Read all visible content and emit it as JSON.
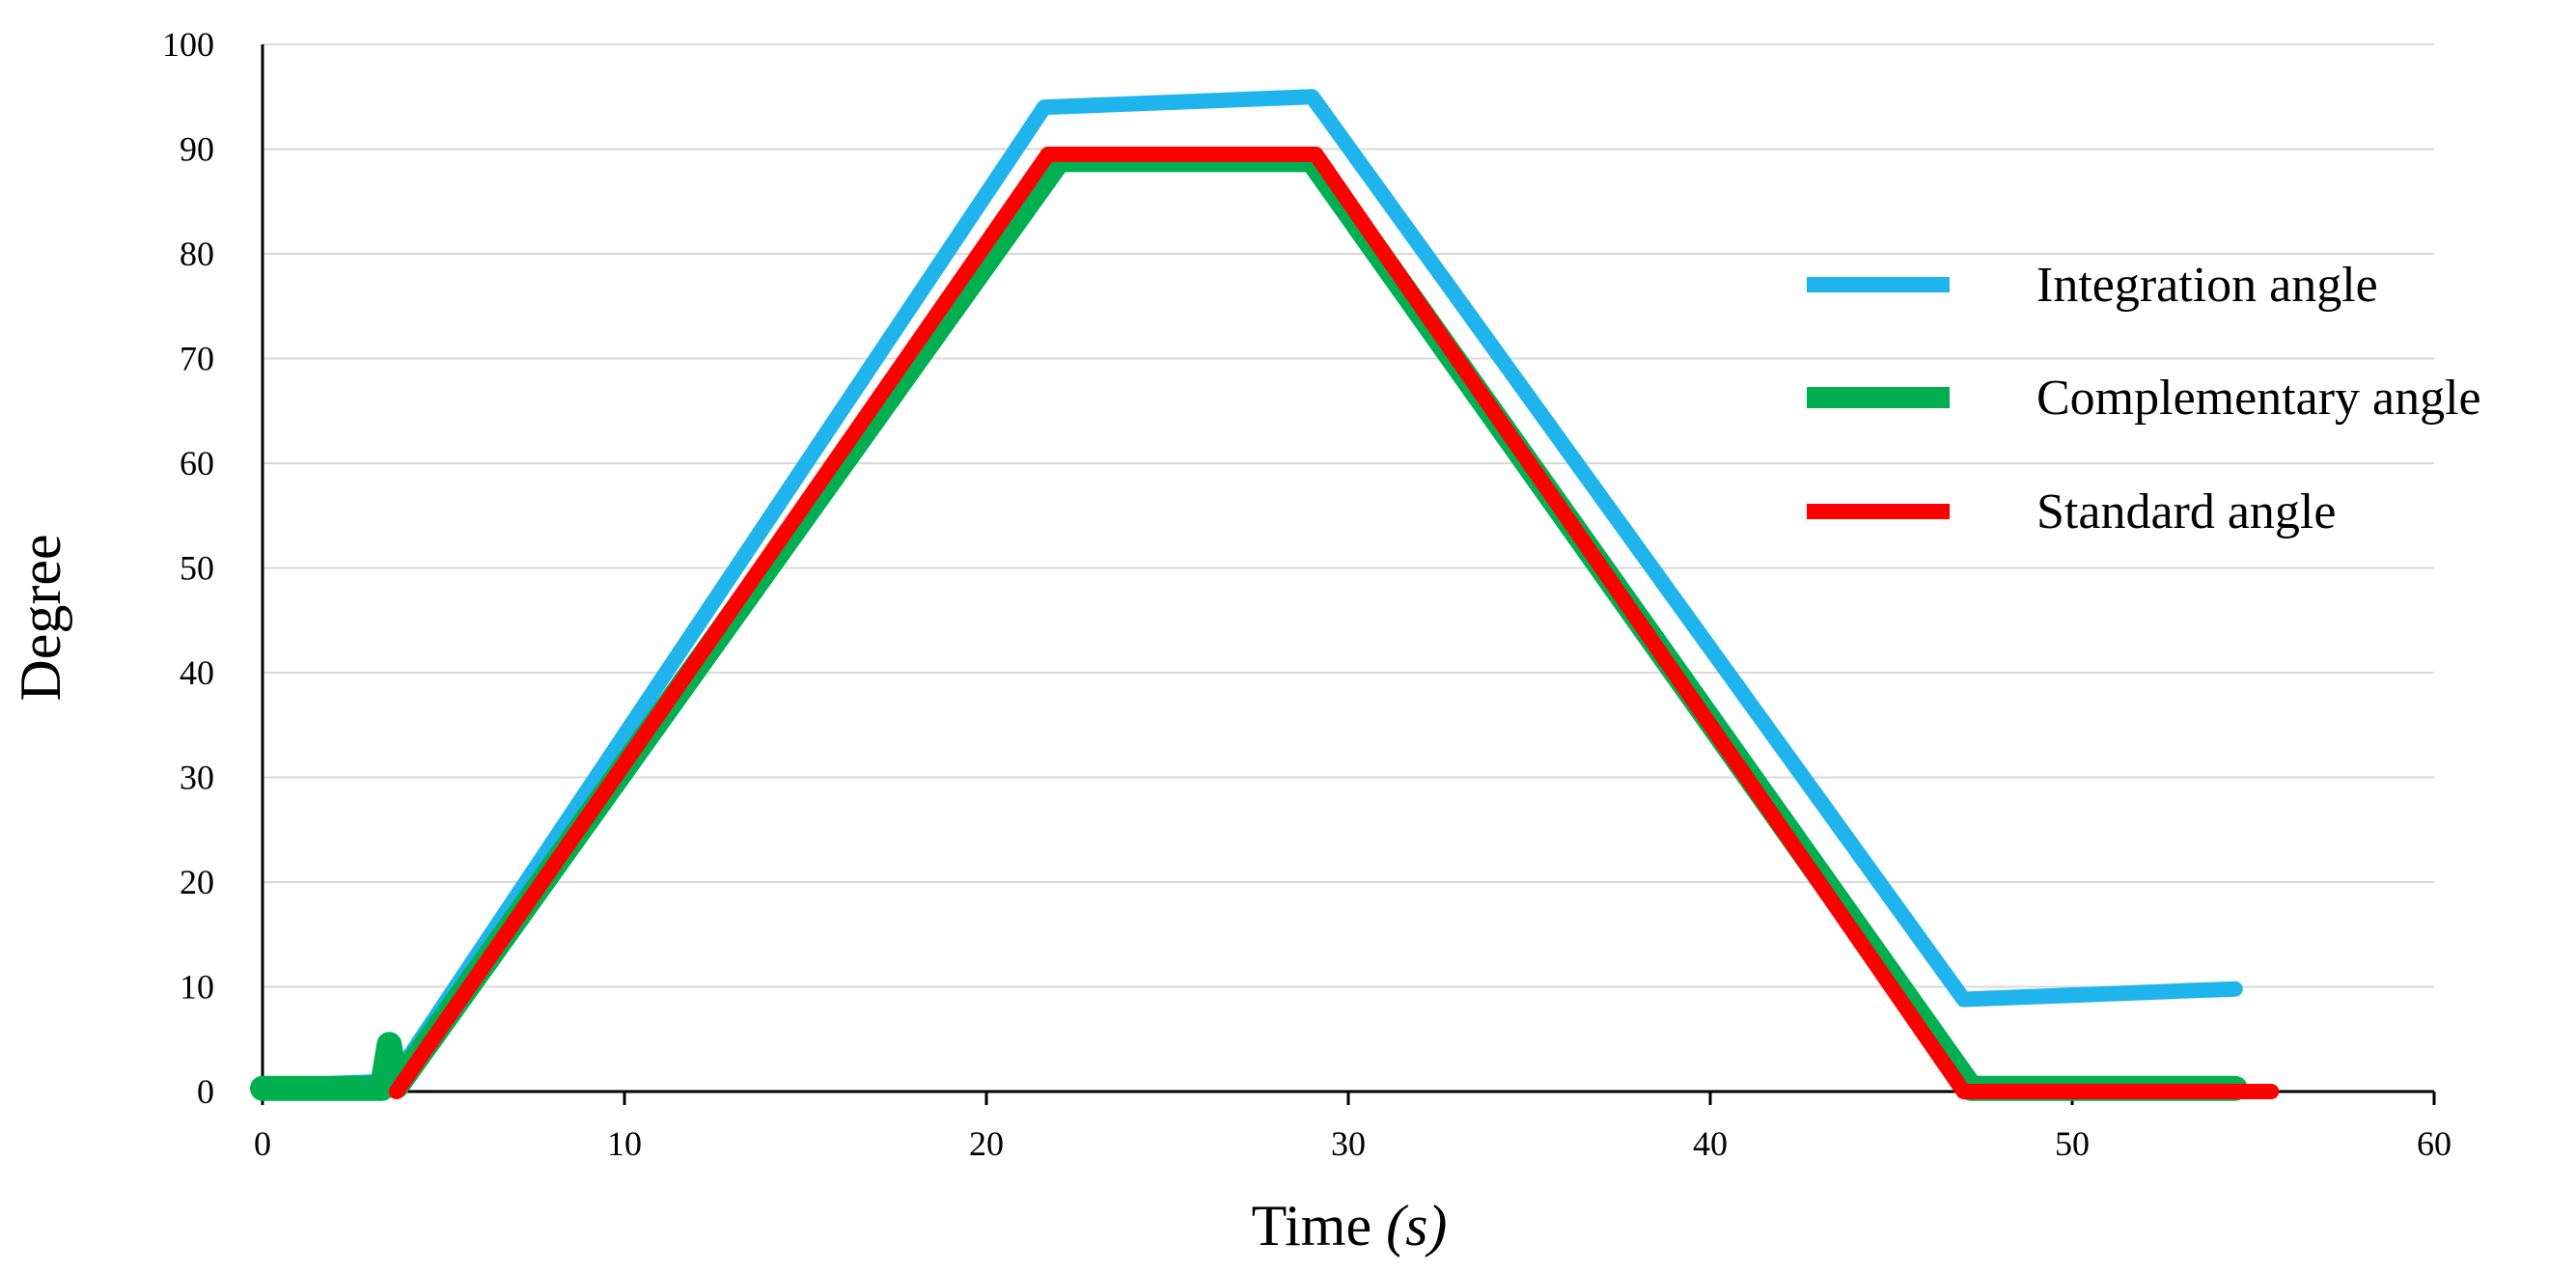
{
  "chart_data": {
    "type": "line",
    "title": "",
    "xlabel_main": "Time",
    "xlabel_unit": "(s)",
    "ylabel": "Degree",
    "xlim": [
      0,
      60
    ],
    "ylim": [
      0,
      100
    ],
    "xticks": [
      0,
      10,
      20,
      30,
      40,
      50,
      60
    ],
    "yticks": [
      0,
      10,
      20,
      30,
      40,
      50,
      60,
      70,
      80,
      90,
      100
    ],
    "grid": "horizontal",
    "legend_position": "right",
    "series": [
      {
        "name": "Integration angle",
        "color": "#1fb4ec",
        "x": [
          0,
          3.6,
          21.6,
          29.0,
          47.0,
          54.5
        ],
        "y": [
          0.5,
          1.0,
          94.0,
          95.0,
          8.8,
          9.8
        ]
      },
      {
        "name": "Complementary angle",
        "color": "#00b050",
        "x": [
          0,
          3.3,
          3.5,
          3.7,
          22.0,
          29.0,
          47.2,
          54.5
        ],
        "y": [
          0.3,
          0.3,
          4.5,
          0.5,
          89.0,
          89.0,
          0.3,
          0.3
        ]
      },
      {
        "name": "Standard angle",
        "color": "#ff0000",
        "x": [
          3.7,
          21.7,
          29.1,
          47.0,
          55.5
        ],
        "y": [
          0,
          89.5,
          89.5,
          0,
          0
        ]
      }
    ]
  }
}
